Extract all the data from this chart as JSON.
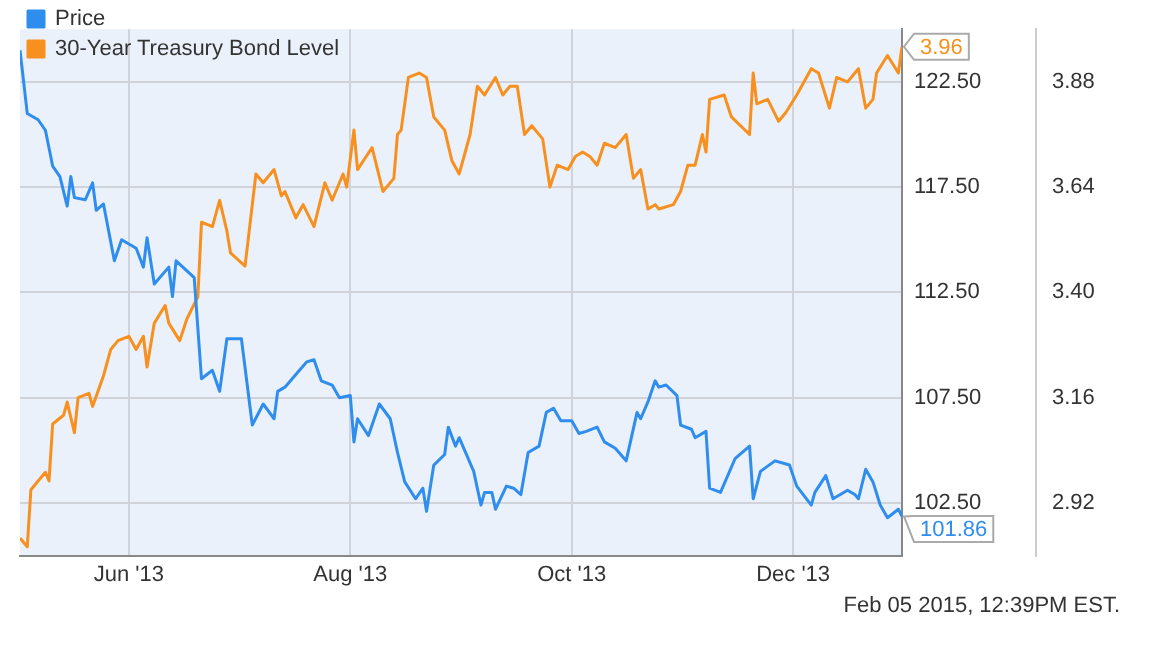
{
  "chart_data": {
    "type": "line",
    "xlim": [
      "2013-05-02",
      "2013-12-31"
    ],
    "xticks": [
      {
        "value": "2013-06-01",
        "label": "Jun '13"
      },
      {
        "value": "2013-08-01",
        "label": "Aug '13"
      },
      {
        "value": "2013-10-01",
        "label": "Oct '13"
      },
      {
        "value": "2013-12-01",
        "label": "Dec '13"
      }
    ],
    "ylim": [
      100,
      125
    ],
    "yticks": [
      {
        "value": 102.5,
        "label": "102.50"
      },
      {
        "value": 107.5,
        "label": "107.50"
      },
      {
        "value": 112.5,
        "label": "112.50"
      },
      {
        "value": 117.5,
        "label": "117.50"
      },
      {
        "value": 122.5,
        "label": "122.50"
      }
    ],
    "y2lim": [
      2.8,
      4.0
    ],
    "y2ticks": [
      2.92,
      3.16,
      {
        "value": 3.4,
        "label": "3.40"
      },
      3.64,
      3.88
    ],
    "grid": true,
    "legend": "top left",
    "annotations": [
      "Feb 05 2015, 12:39PM EST."
    ],
    "series": [
      {
        "name": "Price",
        "color": "#2f8ded",
        "x": [
          "2013-05-02",
          "2013-05-04",
          "2013-05-07",
          "2013-05-09",
          "2013-05-11",
          "2013-05-13",
          "2013-05-15",
          "2013-05-16",
          "2013-05-17",
          "2013-05-20",
          "2013-05-22",
          "2013-05-23",
          "2013-05-25",
          "2013-05-28",
          "2013-05-30",
          "2013-06-03",
          "2013-06-05",
          "2013-06-06",
          "2013-06-08",
          "2013-06-12",
          "2013-06-13",
          "2013-06-14",
          "2013-06-19",
          "2013-06-21",
          "2013-06-24",
          "2013-06-26",
          "2013-06-28",
          "2013-07-02",
          "2013-07-05",
          "2013-07-08",
          "2013-07-11",
          "2013-07-12",
          "2013-07-14",
          "2013-07-18",
          "2013-07-20",
          "2013-07-22",
          "2013-07-24",
          "2013-07-27",
          "2013-07-29",
          "2013-08-01",
          "2013-08-02",
          "2013-08-03",
          "2013-08-06",
          "2013-08-09",
          "2013-08-12",
          "2013-08-14",
          "2013-08-16",
          "2013-08-19",
          "2013-08-21",
          "2013-08-22",
          "2013-08-24",
          "2013-08-27",
          "2013-08-28",
          "2013-08-30",
          "2013-08-31",
          "2013-09-04",
          "2013-09-06",
          "2013-09-07",
          "2013-09-09",
          "2013-09-10",
          "2013-09-13",
          "2013-09-15",
          "2013-09-17",
          "2013-09-19",
          "2013-09-22",
          "2013-09-24",
          "2013-09-26",
          "2013-09-28",
          "2013-10-01",
          "2013-10-03",
          "2013-10-05",
          "2013-10-08",
          "2013-10-10",
          "2013-10-13",
          "2013-10-16",
          "2013-10-19",
          "2013-10-20",
          "2013-10-22",
          "2013-10-24",
          "2013-10-25",
          "2013-10-27",
          "2013-10-30",
          "2013-10-31",
          "2013-11-03",
          "2013-11-04",
          "2013-11-07",
          "2013-11-08",
          "2013-11-11",
          "2013-11-15",
          "2013-11-19",
          "2013-11-20",
          "2013-11-22",
          "2013-11-26",
          "2013-11-30",
          "2013-12-02",
          "2013-12-06",
          "2013-12-07",
          "2013-12-10",
          "2013-12-12",
          "2013-12-16",
          "2013-12-18",
          "2013-12-19",
          "2013-12-21",
          "2013-12-23",
          "2013-12-25",
          "2013-12-27",
          "2013-12-30",
          "2013-12-31"
        ],
        "values": [
          124.0,
          121.0,
          120.7,
          120.2,
          118.5,
          118.0,
          116.6,
          118.0,
          117.0,
          116.9,
          117.7,
          116.4,
          116.7,
          114.0,
          115.0,
          114.6,
          113.7,
          115.1,
          112.9,
          113.7,
          112.3,
          114.0,
          113.2,
          108.4,
          108.8,
          107.8,
          110.3,
          110.3,
          106.2,
          107.2,
          106.5,
          107.8,
          108.0,
          108.8,
          109.2,
          109.3,
          108.3,
          108.1,
          107.5,
          107.6,
          105.4,
          106.5,
          105.7,
          107.2,
          106.5,
          104.9,
          103.5,
          102.7,
          103.2,
          102.1,
          104.3,
          104.8,
          106.1,
          105.2,
          105.6,
          104.0,
          102.4,
          103.0,
          103.0,
          102.2,
          103.3,
          103.2,
          102.9,
          104.9,
          105.2,
          106.8,
          107.0,
          106.4,
          106.4,
          105.8,
          105.9,
          106.1,
          105.4,
          105.1,
          104.5,
          106.8,
          106.5,
          107.3,
          108.3,
          108.0,
          108.1,
          107.6,
          106.2,
          106.0,
          105.6,
          105.9,
          103.2,
          103.0,
          104.6,
          105.2,
          102.7,
          104.0,
          104.5,
          104.3,
          103.3,
          102.4,
          103.0,
          103.8,
          102.7,
          103.1,
          102.9,
          102.7,
          104.1,
          103.5,
          102.4,
          101.8,
          102.2,
          101.86
        ],
        "value_labels": [
          null,
          null,
          null,
          null,
          null,
          null,
          null,
          null,
          null,
          null,
          null,
          null,
          null,
          null,
          null,
          null,
          null,
          null,
          null,
          null,
          null,
          null,
          null,
          null,
          null,
          null,
          null,
          null,
          null,
          null,
          null,
          null,
          null,
          null,
          null,
          null,
          null,
          null,
          null,
          null,
          null,
          null,
          null,
          null,
          null,
          null,
          null,
          null,
          null,
          null,
          null,
          null,
          null,
          null,
          null,
          null,
          null,
          null,
          null,
          null,
          null,
          null,
          null,
          null,
          null,
          null,
          null,
          null,
          null,
          null,
          null,
          null,
          null,
          null,
          null,
          null,
          null,
          null,
          null,
          null,
          null,
          null,
          null,
          null,
          null,
          null,
          null,
          null,
          null,
          null,
          null,
          null,
          null,
          null,
          null,
          null,
          null,
          null,
          null,
          null,
          null,
          null,
          null,
          null,
          null,
          null,
          null,
          "101.86"
        ]
      },
      {
        "name": "30-Year Treasury Bond Level",
        "color": "#f7901e",
        "axis": "y2",
        "x": [
          "2013-05-02",
          "2013-05-04",
          "2013-05-05",
          "2013-05-07",
          "2013-05-09",
          "2013-05-10",
          "2013-05-11",
          "2013-05-14",
          "2013-05-15",
          "2013-05-17",
          "2013-05-18",
          "2013-05-21",
          "2013-05-22",
          "2013-05-25",
          "2013-05-27",
          "2013-05-29",
          "2013-06-01",
          "2013-06-03",
          "2013-06-05",
          "2013-06-06",
          "2013-06-08",
          "2013-06-11",
          "2013-06-12",
          "2013-06-15",
          "2013-06-17",
          "2013-06-20",
          "2013-06-21",
          "2013-06-24",
          "2013-06-26",
          "2013-06-28",
          "2013-06-29",
          "2013-07-03",
          "2013-07-06",
          "2013-07-08",
          "2013-07-11",
          "2013-07-13",
          "2013-07-14",
          "2013-07-17",
          "2013-07-19",
          "2013-07-22",
          "2013-07-25",
          "2013-07-27",
          "2013-07-30",
          "2013-07-31",
          "2013-08-02",
          "2013-08-03",
          "2013-08-07",
          "2013-08-10",
          "2013-08-13",
          "2013-08-14",
          "2013-08-15",
          "2013-08-17",
          "2013-08-20",
          "2013-08-22",
          "2013-08-24",
          "2013-08-27",
          "2013-08-29",
          "2013-08-31",
          "2013-09-03",
          "2013-09-05",
          "2013-09-07",
          "2013-09-10",
          "2013-09-12",
          "2013-09-14",
          "2013-09-16",
          "2013-09-18",
          "2013-09-20",
          "2013-09-23",
          "2013-09-25",
          "2013-09-27",
          "2013-09-30",
          "2013-10-02",
          "2013-10-04",
          "2013-10-06",
          "2013-10-08",
          "2013-10-10",
          "2013-10-13",
          "2013-10-16",
          "2013-10-18",
          "2013-10-20",
          "2013-10-22",
          "2013-10-24",
          "2013-10-25",
          "2013-10-29",
          "2013-10-31",
          "2013-11-02",
          "2013-11-04",
          "2013-11-06",
          "2013-11-07",
          "2013-11-08",
          "2013-11-12",
          "2013-11-14",
          "2013-11-19",
          "2013-11-20",
          "2013-11-21",
          "2013-11-24",
          "2013-11-27",
          "2013-11-29",
          "2013-12-02",
          "2013-12-06",
          "2013-12-08",
          "2013-12-11",
          "2013-12-13",
          "2013-12-16",
          "2013-12-18",
          "2013-12-19",
          "2013-12-21",
          "2013-12-23",
          "2013-12-24",
          "2013-12-27",
          "2013-12-30",
          "2013-12-31"
        ],
        "values": [
          2.84,
          2.82,
          2.95,
          2.97,
          2.99,
          2.97,
          3.1,
          3.12,
          3.15,
          3.08,
          3.16,
          3.17,
          3.14,
          3.21,
          3.27,
          3.29,
          3.3,
          3.27,
          3.3,
          3.23,
          3.33,
          3.37,
          3.33,
          3.29,
          3.34,
          3.39,
          3.56,
          3.55,
          3.61,
          3.54,
          3.49,
          3.46,
          3.67,
          3.65,
          3.68,
          3.62,
          3.63,
          3.57,
          3.6,
          3.55,
          3.65,
          3.61,
          3.67,
          3.64,
          3.77,
          3.68,
          3.73,
          3.63,
          3.66,
          3.76,
          3.77,
          3.89,
          3.9,
          3.89,
          3.8,
          3.77,
          3.7,
          3.67,
          3.76,
          3.87,
          3.85,
          3.89,
          3.85,
          3.87,
          3.87,
          3.76,
          3.78,
          3.75,
          3.64,
          3.69,
          3.68,
          3.71,
          3.72,
          3.71,
          3.69,
          3.74,
          3.73,
          3.76,
          3.66,
          3.68,
          3.59,
          3.6,
          3.59,
          3.6,
          3.63,
          3.69,
          3.69,
          3.76,
          3.72,
          3.84,
          3.85,
          3.8,
          3.76,
          3.9,
          3.83,
          3.84,
          3.79,
          3.81,
          3.85,
          3.91,
          3.9,
          3.82,
          3.89,
          3.88,
          3.9,
          3.91,
          3.82,
          3.84,
          3.9,
          3.94,
          3.9,
          3.96
        ],
        "value_labels": [
          null,
          null,
          null,
          null,
          null,
          null,
          null,
          null,
          null,
          null,
          null,
          null,
          null,
          null,
          null,
          null,
          null,
          null,
          null,
          null,
          null,
          null,
          null,
          null,
          null,
          null,
          null,
          null,
          null,
          null,
          null,
          null,
          null,
          null,
          null,
          null,
          null,
          null,
          null,
          null,
          null,
          null,
          null,
          null,
          null,
          null,
          null,
          null,
          null,
          null,
          null,
          null,
          null,
          null,
          null,
          null,
          null,
          null,
          null,
          null,
          null,
          null,
          null,
          null,
          null,
          null,
          null,
          null,
          null,
          null,
          null,
          null,
          null,
          null,
          null,
          null,
          null,
          null,
          null,
          null,
          null,
          null,
          null,
          null,
          null,
          null,
          null,
          null,
          null,
          null,
          null,
          null,
          null,
          null,
          null,
          null,
          null,
          null,
          null,
          null,
          null,
          null,
          null,
          null,
          null,
          null,
          null,
          null,
          null,
          null,
          null,
          "3.96"
        ]
      }
    ]
  }
}
